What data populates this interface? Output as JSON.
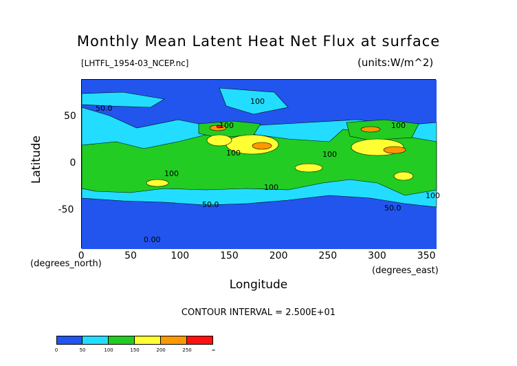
{
  "chart_data": {
    "type": "heatmap",
    "title": "Monthly Mean Latent Heat Net Flux at surface",
    "subtitle": "[LHTFL_1954-03_NCEP.nc]",
    "units": "(units:W/m^2)",
    "xlabel": "Longitude",
    "ylabel": "Latitude",
    "x_unit_label": "(degrees_east)",
    "y_unit_label": "(degrees_north)",
    "xlim": [
      0,
      360
    ],
    "ylim": [
      -90,
      90
    ],
    "x_ticks": [
      "0",
      "50",
      "100",
      "150",
      "200",
      "250",
      "300",
      "350"
    ],
    "y_ticks": [
      "50",
      "0",
      "-50"
    ],
    "contour_interval": "CONTOUR INTERVAL = 2.500E+01",
    "contour_labels": [
      "50.0",
      "100",
      "100",
      "100",
      "100",
      "100",
      "100",
      "100",
      "50.0",
      "50.0",
      "0.00",
      "100"
    ],
    "colorbar": {
      "ticks": [
        "0",
        "50",
        "100",
        "150",
        "200",
        "250",
        "∞"
      ],
      "colors": [
        "#2255ee",
        "#22ddff",
        "#22cc22",
        "#ffff33",
        "#ff9900",
        "#ff1111"
      ]
    }
  }
}
